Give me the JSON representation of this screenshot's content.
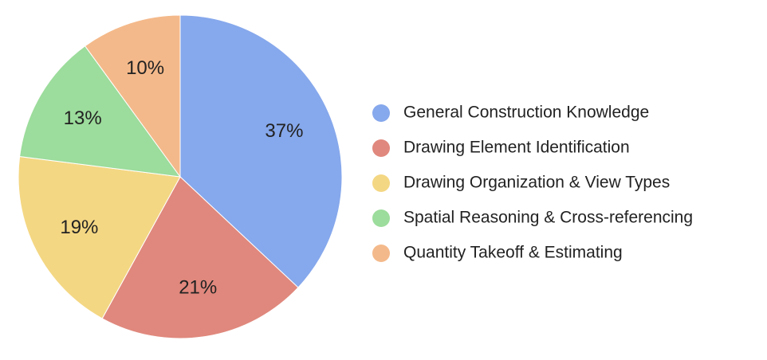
{
  "chart_data": {
    "type": "pie",
    "categories": [
      "General Construction Knowledge",
      "Drawing Element Identification",
      "Drawing Organization & View Types",
      "Spatial Reasoning & Cross-referencing",
      "Quantity Takeoff & Estimating"
    ],
    "values": [
      37,
      21,
      19,
      13,
      10
    ],
    "value_labels": [
      "37%",
      "21%",
      "19%",
      "13%",
      "10%"
    ],
    "colors": [
      "#86a8ec",
      "#e0887d",
      "#f4d783",
      "#9cdc9c",
      "#f4b98a"
    ],
    "legend": "right"
  }
}
